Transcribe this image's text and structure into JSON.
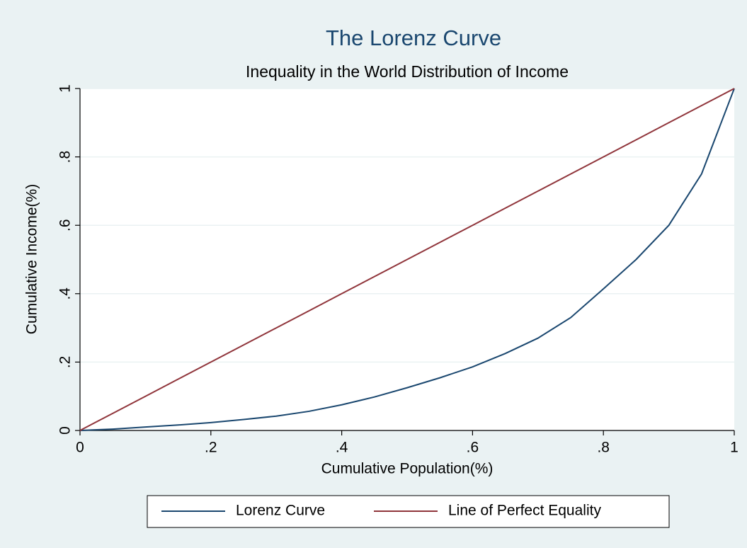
{
  "chart_data": {
    "type": "line",
    "title": "The Lorenz Curve",
    "subtitle": "Inequality in the World Distribution of Income",
    "xlabel": "Cumulative Population(%)",
    "ylabel": "Cumulative Income(%)",
    "x": [
      0,
      0.05,
      0.1,
      0.15,
      0.2,
      0.25,
      0.3,
      0.35,
      0.4,
      0.45,
      0.5,
      0.55,
      0.6,
      0.65,
      0.7,
      0.75,
      0.8,
      0.85,
      0.9,
      0.95,
      1
    ],
    "series": [
      {
        "name": "Lorenz Curve",
        "color": "#1a476f",
        "values": [
          0,
          0.004,
          0.01,
          0.016,
          0.023,
          0.032,
          0.042,
          0.056,
          0.075,
          0.098,
          0.125,
          0.154,
          0.186,
          0.225,
          0.27,
          0.33,
          0.414,
          0.5,
          0.6,
          0.75,
          1
        ]
      },
      {
        "name": "Line of Perfect Equality",
        "color": "#90353b",
        "values": [
          0,
          0.05,
          0.1,
          0.15,
          0.2,
          0.25,
          0.3,
          0.35,
          0.4,
          0.45,
          0.5,
          0.55,
          0.6,
          0.65,
          0.7,
          0.75,
          0.8,
          0.85,
          0.9,
          0.95,
          1
        ]
      }
    ],
    "xlim": [
      0,
      1
    ],
    "ylim": [
      0,
      1
    ],
    "xticks": [
      0,
      {
        "value": 0.2,
        "label": ".2"
      },
      {
        "value": 0.4,
        "label": ".4"
      },
      {
        "value": 0.6,
        "label": ".6"
      },
      {
        "value": 0.8,
        "label": ".8"
      },
      1
    ],
    "yticks": [
      0,
      {
        "value": 0.2,
        "label": ".2"
      },
      {
        "value": 0.4,
        "label": ".4"
      },
      {
        "value": 0.6,
        "label": ".6"
      },
      {
        "value": 0.8,
        "label": ".8"
      },
      1
    ],
    "grid": true,
    "legend": "bottom"
  }
}
